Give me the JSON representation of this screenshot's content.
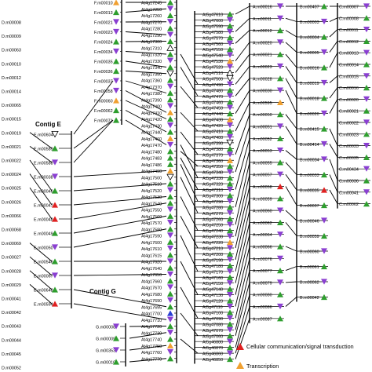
{
  "colors": {
    "green": "#2e9e2e",
    "purple": "#8a3fd1",
    "orange": "#f0a030",
    "red": "#e02020",
    "blue": "#2a3fd6",
    "open": "#ffffff",
    "line": "#000000"
  },
  "contig_labels": {
    "e": "Contig E",
    "g": "Contig G"
  },
  "legend": [
    {
      "label": "Cellular communication/signal transduction",
      "color": "red",
      "shape": "up"
    },
    {
      "label": "Transcription",
      "color": "orange",
      "shape": "up"
    }
  ],
  "columns": {
    "D": [
      {
        "label": "D.m00008",
        "marker": ""
      },
      {
        "label": "D.m00009",
        "marker": ""
      },
      {
        "label": "D.m00063",
        "marker": ""
      },
      {
        "label": "D.m00010",
        "marker": ""
      },
      {
        "label": "D.m00012",
        "marker": ""
      },
      {
        "label": "D.m00014",
        "marker": ""
      },
      {
        "label": "D.m00065",
        "marker": ""
      },
      {
        "label": "D.m00015",
        "marker": ""
      },
      {
        "label": "D.m00019",
        "marker": ""
      },
      {
        "label": "D.m00021",
        "marker": ""
      },
      {
        "label": "D.m00022",
        "marker": ""
      },
      {
        "label": "D.m00024",
        "marker": ""
      },
      {
        "label": "D.m00025",
        "marker": ""
      },
      {
        "label": "D.m00026",
        "marker": ""
      },
      {
        "label": "D.m00066",
        "marker": ""
      },
      {
        "label": "D.m00068",
        "marker": ""
      },
      {
        "label": "D.m00069",
        "marker": ""
      },
      {
        "label": "D.m00027",
        "marker": ""
      },
      {
        "label": "D.m00028",
        "marker": ""
      },
      {
        "label": "D.m00029",
        "marker": ""
      },
      {
        "label": "D.m00041",
        "marker": ""
      },
      {
        "label": "D.m00042",
        "marker": ""
      },
      {
        "label": "D.m00043",
        "marker": ""
      },
      {
        "label": "D.m00044",
        "marker": ""
      },
      {
        "label": "D.m00045",
        "marker": ""
      },
      {
        "label": "D.m00052",
        "marker": ""
      }
    ],
    "E": [
      {
        "label": "E.m00604",
        "marker": "open-down"
      },
      {
        "label": "E.m00589",
        "marker": "green-up"
      },
      {
        "label": "E.m00588",
        "marker": "purple-down"
      },
      {
        "label": "E.m00038",
        "marker": "purple-down"
      },
      {
        "label": "E.m00046",
        "marker": "green-up"
      },
      {
        "label": "E.m00047",
        "marker": "red-up"
      },
      {
        "label": "E.m00048",
        "marker": "red-up"
      },
      {
        "label": "E.m00049",
        "marker": "green-up"
      },
      {
        "label": "E.m00050",
        "marker": "purple-down"
      },
      {
        "label": "E.m00546",
        "marker": "green-up"
      },
      {
        "label": "E.m00067",
        "marker": "purple-down"
      },
      {
        "label": "E.m00648",
        "marker": "green-up"
      },
      {
        "label": "E.m00594",
        "marker": "red-up"
      }
    ],
    "F": [
      {
        "label": "F.m00010",
        "marker": "orange-up"
      },
      {
        "label": "F.m00013",
        "marker": "green-up"
      },
      {
        "label": "F.m00021",
        "marker": "purple-down"
      },
      {
        "label": "F.m00023",
        "marker": "purple-down"
      },
      {
        "label": "F.m00024",
        "marker": "green-up"
      },
      {
        "label": "F.m00034",
        "marker": "purple-down"
      },
      {
        "label": "F.m00035",
        "marker": "green-up"
      },
      {
        "label": "F.m00036",
        "marker": "green-up"
      },
      {
        "label": "F.m00037",
        "marker": "purple-down"
      },
      {
        "label": "F.m00058",
        "marker": "purple-down"
      },
      {
        "label": "F.m00060",
        "marker": "orange-up"
      },
      {
        "label": "F.m00062",
        "marker": "green-up"
      },
      {
        "label": "F.m00071",
        "marker": "green-up"
      }
    ],
    "G": [
      {
        "label": "G.m00008",
        "marker": "purple-down"
      },
      {
        "label": "G.m00009",
        "marker": "green-up"
      },
      {
        "label": "G.m00353",
        "marker": "purple-down"
      },
      {
        "label": "G.m00010",
        "marker": "green-up"
      }
    ],
    "At1": [
      {
        "label": "At4g17245",
        "marker": "green-up"
      },
      {
        "label": "At4g17250",
        "marker": "purple-down"
      },
      {
        "label": "At4g17260",
        "marker": "green-up"
      },
      {
        "label": "At4g17270",
        "marker": "purple-down"
      },
      {
        "label": "At4g17280",
        "marker": "green-up"
      },
      {
        "label": "At4g17290",
        "marker": "purple-down"
      },
      {
        "label": "At4g17300",
        "marker": "green-up"
      },
      {
        "label": "At4g17310",
        "marker": "open-up"
      },
      {
        "label": "At4g17320",
        "marker": "green-up"
      },
      {
        "label": "At4g17330",
        "marker": "purple-down"
      },
      {
        "label": "At4g17340",
        "marker": "green-up"
      },
      {
        "label": "At4g17350",
        "marker": "open-down"
      },
      {
        "label": "At4g17360",
        "marker": "green-up"
      },
      {
        "label": "At4g17370",
        "marker": "purple-down"
      },
      {
        "label": "At4g17380",
        "marker": "green-up"
      },
      {
        "label": "At4g17390",
        "marker": "green-up"
      },
      {
        "label": "At4g17400",
        "marker": "purple-down"
      },
      {
        "label": "At4g17410",
        "marker": "orange-up"
      },
      {
        "label": "At4g17420",
        "marker": "green-up"
      },
      {
        "label": "At4g17430",
        "marker": "purple-down"
      },
      {
        "label": "At4g17440",
        "marker": "green-up"
      },
      {
        "label": "At4g17460",
        "marker": "orange-up"
      },
      {
        "label": "At4g17470",
        "marker": "purple-down"
      },
      {
        "label": "At4g17480",
        "marker": "green-up"
      },
      {
        "label": "At4g17483",
        "marker": "green-up"
      },
      {
        "label": "At4g17486",
        "marker": "green-up"
      },
      {
        "label": "At4g17490",
        "marker": "orange-up"
      },
      {
        "label": "At4g17500",
        "marker": "open-down"
      },
      {
        "label": "At4g17510",
        "marker": "green-up"
      },
      {
        "label": "At4g17520",
        "marker": "purple-down"
      },
      {
        "label": "At4g17530",
        "marker": "green-up"
      },
      {
        "label": "At4g17540",
        "marker": "green-up"
      },
      {
        "label": "At4g17550",
        "marker": "purple-down"
      },
      {
        "label": "At4g17560",
        "marker": "green-up"
      },
      {
        "label": "At4g17570",
        "marker": "purple-down"
      },
      {
        "label": "At4g17580",
        "marker": "green-up"
      },
      {
        "label": "At4g17590",
        "marker": "purple-down"
      },
      {
        "label": "At4g17600",
        "marker": "green-up"
      },
      {
        "label": "At4g17610",
        "marker": "purple-down"
      },
      {
        "label": "At4g17615",
        "marker": "green-up"
      },
      {
        "label": "At4g17620",
        "marker": "purple-down"
      },
      {
        "label": "At4g17640",
        "marker": "green-up"
      },
      {
        "label": "At4g17650",
        "marker": "purple-down"
      },
      {
        "label": "At4g17660",
        "marker": "green-up"
      },
      {
        "label": "At4g17670",
        "marker": "purple-down"
      },
      {
        "label": "At4g17680",
        "marker": "green-up"
      },
      {
        "label": "At4g17690",
        "marker": "purple-down"
      },
      {
        "label": "At4g17695",
        "marker": "green-up"
      },
      {
        "label": "At4g17700",
        "marker": "blue-up"
      },
      {
        "label": "At4g17710",
        "marker": "purple-down"
      },
      {
        "label": "At4g17720",
        "marker": "green-up"
      },
      {
        "label": "At4g17730",
        "marker": "purple-down"
      },
      {
        "label": "At4g17740",
        "marker": "green-up"
      },
      {
        "label": "At4g17750",
        "marker": "orange-up"
      },
      {
        "label": "At4g17760",
        "marker": "purple-down"
      },
      {
        "label": "At4g17770",
        "marker": "green-up"
      }
    ],
    "At2": [
      {
        "label": "At5g47610",
        "marker": "green-up"
      },
      {
        "label": "At5g47600",
        "marker": "purple-down"
      },
      {
        "label": "At5g47590",
        "marker": "green-up"
      },
      {
        "label": "At5g47580",
        "marker": "purple-down"
      },
      {
        "label": "At5g47570",
        "marker": "green-up"
      },
      {
        "label": "At5g47560",
        "marker": "purple-down"
      },
      {
        "label": "At5g47550",
        "marker": "green-up"
      },
      {
        "label": "At5g47540",
        "marker": "purple-down"
      },
      {
        "label": "At5g47530",
        "marker": "orange-up"
      },
      {
        "label": "At5g47520",
        "marker": "purple-down"
      },
      {
        "label": "At5g47510",
        "marker": "open-up"
      },
      {
        "label": "At5g47500",
        "marker": "open-down"
      },
      {
        "label": "At5g47490",
        "marker": "purple-down"
      },
      {
        "label": "At5g47480",
        "marker": "green-up"
      },
      {
        "label": "At5g47470",
        "marker": "purple-down"
      },
      {
        "label": "At5g47460",
        "marker": "green-up"
      },
      {
        "label": "At5g47450",
        "marker": "purple-down"
      },
      {
        "label": "At5g47440",
        "marker": "green-up"
      },
      {
        "label": "At5g47430",
        "marker": "orange-up"
      },
      {
        "label": "At5g47420",
        "marker": "purple-down"
      },
      {
        "label": "At5g47410",
        "marker": "green-up"
      },
      {
        "label": "At5g47400",
        "marker": "purple-down"
      },
      {
        "label": "At5g47390",
        "marker": "open-down"
      },
      {
        "label": "At5g47380",
        "marker": "green-up"
      },
      {
        "label": "At5g47370",
        "marker": "purple-down"
      },
      {
        "label": "At5g47360",
        "marker": "orange-up"
      },
      {
        "label": "At5g47350",
        "marker": "green-up"
      },
      {
        "label": "At5g47340",
        "marker": "purple-down"
      },
      {
        "label": "At5g47330",
        "marker": "green-up"
      },
      {
        "label": "At5g47320",
        "marker": "green-up"
      },
      {
        "label": "At5g47310",
        "marker": "purple-down"
      },
      {
        "label": "At5g47300",
        "marker": "green-up"
      },
      {
        "label": "At5g47290",
        "marker": "purple-down"
      },
      {
        "label": "At5g47280",
        "marker": "green-up"
      },
      {
        "label": "At5g47270",
        "marker": "purple-down"
      },
      {
        "label": "At5g47260",
        "marker": "green-up"
      },
      {
        "label": "At5g47250",
        "marker": "purple-down"
      },
      {
        "label": "At5g47240",
        "marker": "green-up"
      },
      {
        "label": "At5g47230",
        "marker": "purple-down"
      },
      {
        "label": "At5g47220",
        "marker": "orange-up"
      },
      {
        "label": "At5g47210",
        "marker": "purple-down"
      },
      {
        "label": "At5g47200",
        "marker": "green-up"
      },
      {
        "label": "At5g47190",
        "marker": "purple-down"
      },
      {
        "label": "At5g47180",
        "marker": "green-up"
      },
      {
        "label": "At5g47170",
        "marker": "purple-down"
      },
      {
        "label": "At5g47160",
        "marker": "green-up"
      },
      {
        "label": "At5g47150",
        "marker": "purple-down"
      },
      {
        "label": "At5g47140",
        "marker": "green-up"
      },
      {
        "label": "At5g47130",
        "marker": "purple-down"
      },
      {
        "label": "At5g47120",
        "marker": "green-up"
      },
      {
        "label": "At5g47110",
        "marker": "purple-down"
      },
      {
        "label": "At5g47100",
        "marker": "green-up"
      },
      {
        "label": "At5g47090",
        "marker": "purple-down"
      },
      {
        "label": "At5g47080",
        "marker": "green-up"
      },
      {
        "label": "At5g47070",
        "marker": "purple-down"
      },
      {
        "label": "At5g47060",
        "marker": "green-up"
      },
      {
        "label": "At5g46880",
        "marker": "purple-down"
      },
      {
        "label": "At5g46870",
        "marker": "green-up"
      },
      {
        "label": "At5g46860",
        "marker": "purple-down"
      },
      {
        "label": "At5g46850",
        "marker": "green-up"
      }
    ],
    "A": [
      {
        "label": "A.m00016",
        "marker": "purple-down"
      },
      {
        "label": "A.m00011",
        "marker": "purple-down"
      },
      {
        "label": "A.m00012",
        "marker": "green-up"
      },
      {
        "label": "A.m00020",
        "marker": "purple-down"
      },
      {
        "label": "A.m00021",
        "marker": "green-up"
      },
      {
        "label": "A.m00023",
        "marker": "purple-down"
      },
      {
        "label": "A.m00028",
        "marker": "green-up"
      },
      {
        "label": "A.m00030",
        "marker": "purple-down"
      },
      {
        "label": "A.m00595",
        "marker": "orange-up"
      },
      {
        "label": "A.m00050",
        "marker": "green-up"
      },
      {
        "label": "A.m00051",
        "marker": "purple-down"
      },
      {
        "label": "A.m00052",
        "marker": "green-up"
      },
      {
        "label": "A.m00053",
        "marker": "purple-down"
      },
      {
        "label": "A.m00055",
        "marker": "green-up"
      },
      {
        "label": "A.m00057",
        "marker": "purple-down"
      },
      {
        "label": "A.m00058",
        "marker": "red-up"
      },
      {
        "label": "A.m00059",
        "marker": "green-up"
      },
      {
        "label": "A.m00060",
        "marker": "purple-down"
      },
      {
        "label": "A.m00062",
        "marker": "green-up"
      },
      {
        "label": "A.m00064",
        "marker": "purple-down"
      },
      {
        "label": "A.m00066",
        "marker": "green-up"
      },
      {
        "label": "A.m00076",
        "marker": "purple-down"
      },
      {
        "label": "A.m00077",
        "marker": "green-up"
      },
      {
        "label": "A.m00079",
        "marker": "purple-down"
      },
      {
        "label": "A.m00080",
        "marker": "green-up"
      },
      {
        "label": "A.m00086",
        "marker": "purple-down"
      },
      {
        "label": "A.m00087",
        "marker": "green-up"
      }
    ],
    "B": [
      {
        "label": "B.m00407",
        "marker": "green-up"
      },
      {
        "label": "B.m00003",
        "marker": "purple-down"
      },
      {
        "label": "B.m00004",
        "marker": "green-up"
      },
      {
        "label": "B.m00005",
        "marker": "purple-down"
      },
      {
        "label": "B.m00016",
        "marker": "green-up"
      },
      {
        "label": "B.m00019",
        "marker": "purple-down"
      },
      {
        "label": "B.m00018",
        "marker": "green-up"
      },
      {
        "label": "B.m00020",
        "marker": "purple-down"
      },
      {
        "label": "B.m00415",
        "marker": "green-up"
      },
      {
        "label": "B.m00414",
        "marker": "purple-down"
      },
      {
        "label": "B.m00034",
        "marker": "purple-down"
      },
      {
        "label": "B.m00033",
        "marker": "green-up"
      },
      {
        "label": "B.m00035",
        "marker": "red-up"
      },
      {
        "label": "B.m00037",
        "marker": "green-up"
      },
      {
        "label": "B.m00046",
        "marker": "purple-down"
      },
      {
        "label": "B.m00059",
        "marker": "green-up"
      },
      {
        "label": "B.m00060",
        "marker": "purple-down"
      },
      {
        "label": "B.m00061",
        "marker": "green-up"
      },
      {
        "label": "B.m00062",
        "marker": "purple-down"
      },
      {
        "label": "B.m00042",
        "marker": "green-up"
      }
    ],
    "C": [
      {
        "label": "C.m00007",
        "marker": "purple-down"
      },
      {
        "label": "C.m00008",
        "marker": "green-up"
      },
      {
        "label": "C.m00011",
        "marker": "purple-down"
      },
      {
        "label": "C.m00012",
        "marker": "green-up"
      },
      {
        "label": "C.m00013",
        "marker": "purple-down"
      },
      {
        "label": "C.m00014",
        "marker": "green-up"
      },
      {
        "label": "C.m00015",
        "marker": "purple-down"
      },
      {
        "label": "C.m00016",
        "marker": "green-up"
      },
      {
        "label": "C.m00020",
        "marker": "purple-down"
      },
      {
        "label": "C.m00021",
        "marker": "green-up"
      },
      {
        "label": "C.m00022",
        "marker": "purple-down"
      },
      {
        "label": "C.m00023",
        "marker": "green-up"
      },
      {
        "label": "C.m00033",
        "marker": "purple-down"
      },
      {
        "label": "C.m00035",
        "marker": "green-up"
      },
      {
        "label": "C.m00434",
        "marker": "purple-down"
      },
      {
        "label": "C.m00036",
        "marker": "green-up"
      },
      {
        "label": "C.m00041",
        "marker": "purple-down"
      },
      {
        "label": "C.m00062",
        "marker": "green-up"
      }
    ]
  }
}
